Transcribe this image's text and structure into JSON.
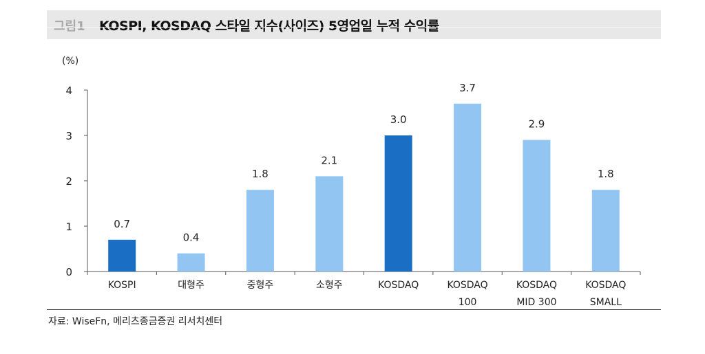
{
  "header": {
    "figure_label": "그림1",
    "title": "KOSPI, KOSDAQ 스타일 지수(사이즈) 5영업일 누적 수익률"
  },
  "chart_data": {
    "type": "bar",
    "title": "KOSPI, KOSDAQ 스타일 지수(사이즈) 5영업일 누적 수익률",
    "ylabel": "(%)",
    "xlabel": "",
    "ylim": [
      0,
      4
    ],
    "yticks": [
      0,
      1,
      2,
      3,
      4
    ],
    "grid": false,
    "categories": [
      [
        "KOSPI"
      ],
      [
        "대형주"
      ],
      [
        "중형주"
      ],
      [
        "소형주"
      ],
      [
        "KOSDAQ"
      ],
      [
        "KOSDAQ",
        "100"
      ],
      [
        "KOSDAQ",
        "MID 300"
      ],
      [
        "KOSDAQ",
        "SMALL"
      ]
    ],
    "values": [
      0.7,
      0.4,
      1.8,
      2.1,
      3.0,
      3.7,
      2.9,
      1.8
    ],
    "data_labels": [
      "0.7",
      "0.4",
      "1.8",
      "2.1",
      "3.0",
      "3.7",
      "2.9",
      "1.8"
    ],
    "bar_colors": [
      "#1a6fc4",
      "#92c5f2",
      "#92c5f2",
      "#92c5f2",
      "#1a6fc4",
      "#92c5f2",
      "#92c5f2",
      "#92c5f2"
    ]
  },
  "footer": {
    "source": "자료: WiseFn, 메리츠종금증권 리서치센터"
  }
}
